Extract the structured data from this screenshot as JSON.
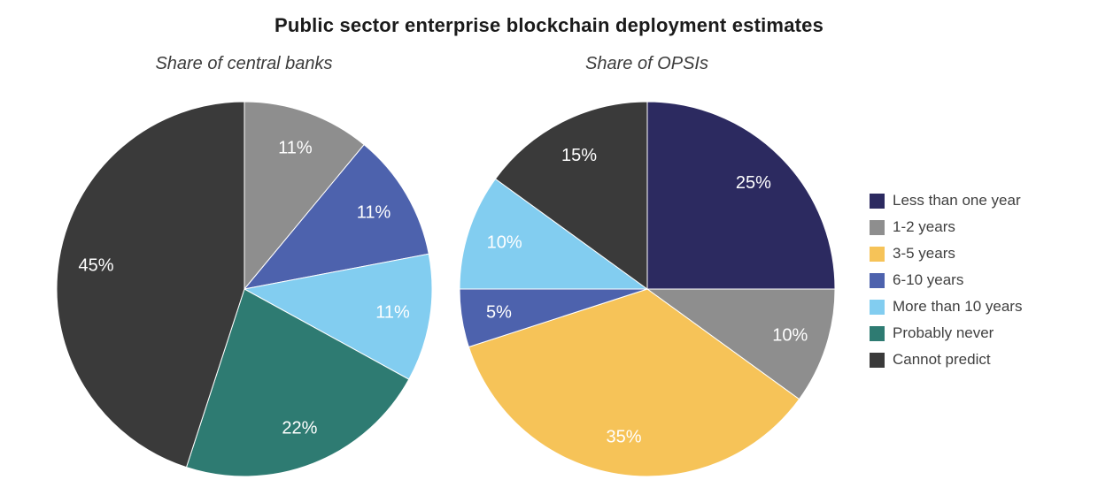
{
  "title": "Public sector enterprise blockchain deployment estimates",
  "label_color": "#ffffff",
  "legend": {
    "position": "right",
    "items": [
      {
        "label": "Less than one year",
        "color": "#2c2a60"
      },
      {
        "label": "1-2 years",
        "color": "#8e8e8e"
      },
      {
        "label": "3-5 years",
        "color": "#f6c358"
      },
      {
        "label": "6-10 years",
        "color": "#4d62ad"
      },
      {
        "label": "More than 10 years",
        "color": "#82cdf0"
      },
      {
        "label": "Probably never",
        "color": "#2e7b72"
      },
      {
        "label": "Cannot predict",
        "color": "#3a3a3a"
      }
    ]
  },
  "chart_data": [
    {
      "type": "pie",
      "title": "Share of central banks",
      "start_angle_deg": -90,
      "direction": "clockwise",
      "value_suffix": "%",
      "slices": [
        {
          "label": "1-2 years",
          "value": 11
        },
        {
          "label": "6-10 years",
          "value": 11
        },
        {
          "label": "More than 10 years",
          "value": 11
        },
        {
          "label": "Probably never",
          "value": 22
        },
        {
          "label": "Cannot predict",
          "value": 45
        }
      ]
    },
    {
      "type": "pie",
      "title": "Share of OPSIs",
      "start_angle_deg": -90,
      "direction": "clockwise",
      "value_suffix": "%",
      "slices": [
        {
          "label": "Less than one year",
          "value": 25
        },
        {
          "label": "1-2 years",
          "value": 10
        },
        {
          "label": "3-5 years",
          "value": 35
        },
        {
          "label": "6-10 years",
          "value": 5
        },
        {
          "label": "More than 10 years",
          "value": 10
        },
        {
          "label": "Cannot predict",
          "value": 15
        }
      ]
    }
  ]
}
